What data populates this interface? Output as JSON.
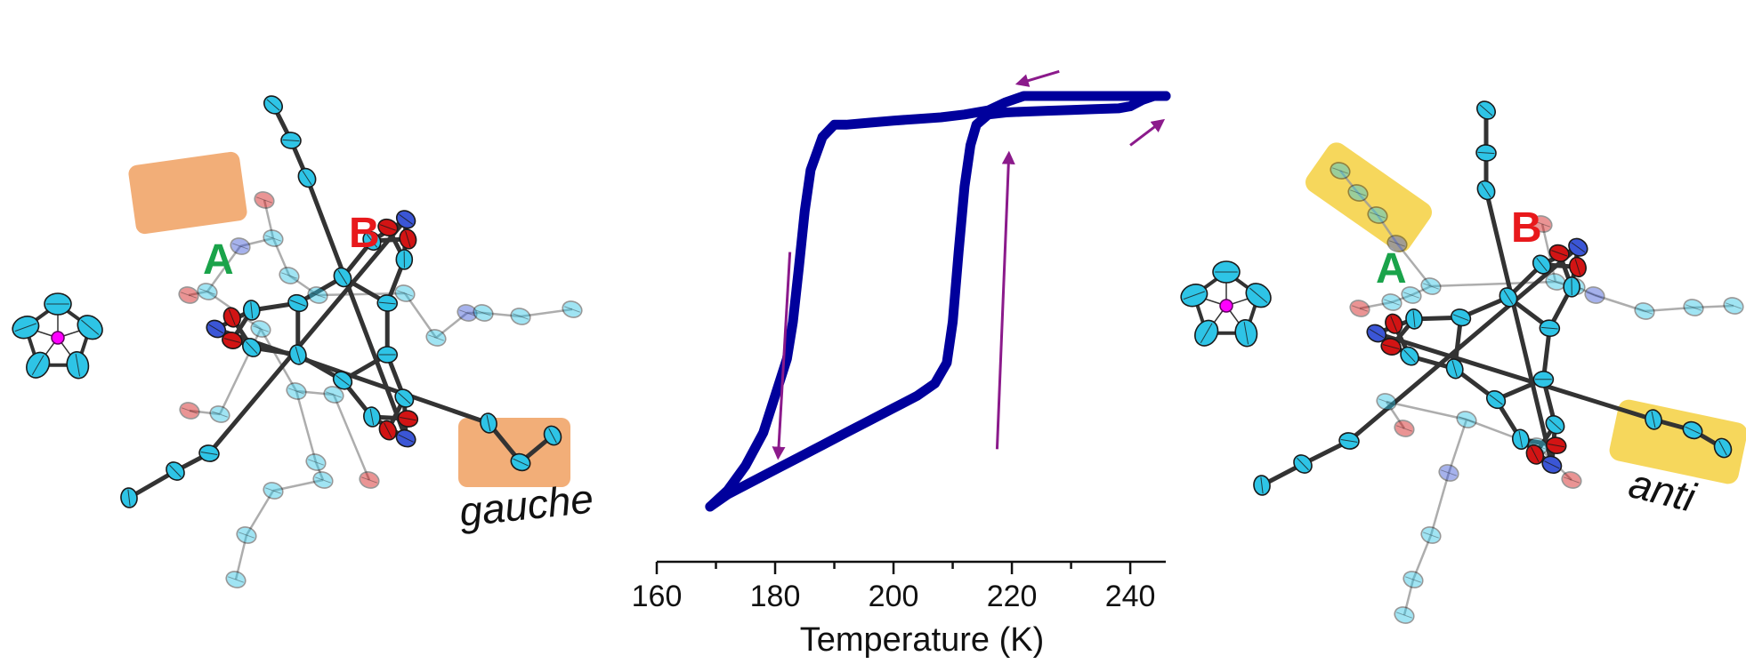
{
  "chart_data": {
    "type": "line",
    "xlabel": "Temperature (K)",
    "ylabel": "",
    "xlim": [
      160,
      246
    ],
    "x_ticks": [
      160,
      180,
      200,
      220,
      240
    ],
    "x_tick_labels": [
      "160",
      "180",
      "200",
      "220",
      "240"
    ],
    "y_axis_shown": false,
    "grid": false,
    "legend": "none",
    "series": [
      {
        "x": [
          169,
          172,
          176,
          180,
          184,
          188,
          192,
          196,
          200,
          204,
          207,
          209,
          210,
          211,
          212,
          213,
          214,
          216,
          219,
          222,
          226,
          230,
          234,
          238,
          240,
          242,
          244,
          246
        ],
        "y": [
          0.0,
          0.03,
          0.06,
          0.09,
          0.12,
          0.15,
          0.18,
          0.21,
          0.24,
          0.27,
          0.3,
          0.35,
          0.45,
          0.62,
          0.78,
          0.88,
          0.93,
          0.955,
          0.96,
          0.962,
          0.964,
          0.966,
          0.968,
          0.97,
          0.975,
          0.99,
          1.0,
          1.0
        ]
      },
      {
        "x": [
          246,
          242,
          238,
          232,
          226,
          222,
          219,
          216,
          212,
          208,
          204,
          200,
          196,
          192,
          190,
          188,
          186,
          185,
          184,
          183,
          182,
          180,
          178,
          175,
          172,
          169
        ],
        "y": [
          1.0,
          1.0,
          1.0,
          1.0,
          1.0,
          1.0,
          0.985,
          0.965,
          0.955,
          0.948,
          0.944,
          0.94,
          0.935,
          0.93,
          0.93,
          0.9,
          0.82,
          0.72,
          0.58,
          0.45,
          0.36,
          0.27,
          0.18,
          0.1,
          0.04,
          0.0
        ]
      }
    ],
    "line_color": "#00009c",
    "arrow_color": "#8b1a8b"
  },
  "structures": {
    "left": {
      "conformation_label": "gauche",
      "site_a_label": "A",
      "site_b_label": "B",
      "highlight_color": "#f0a060"
    },
    "right": {
      "conformation_label": "anti",
      "site_a_label": "A",
      "site_b_label": "B",
      "highlight_color": "#f5d040"
    },
    "colors": {
      "carbon": "#2ec4e6",
      "nitrogen": "#3b56d6",
      "oxygen": "#d21414",
      "metal": "#ff00ff",
      "bond": "#333333"
    }
  }
}
